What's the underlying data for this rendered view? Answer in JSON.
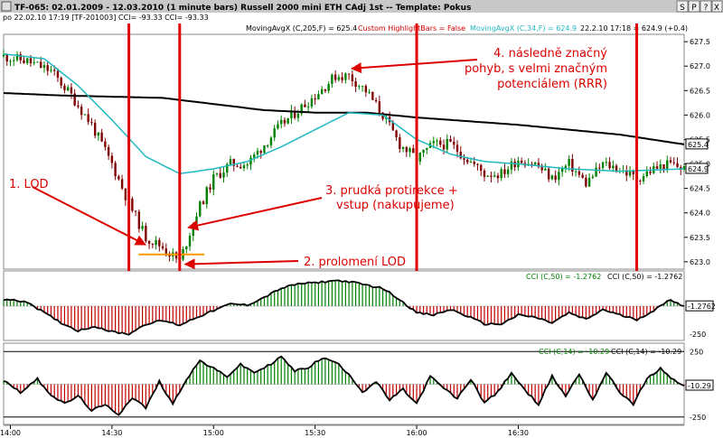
{
  "titlebar": {
    "text": "TF-065:  02.01.2009 - 12.03.2010  (1 minute bars)   Russell 2000 mini ETH CAdj 1st  --  Template: Pokus",
    "buttons": [
      "S",
      "P",
      "?",
      "X"
    ]
  },
  "infobar": {
    "left": "po   22.02.10 17:19 [TF-201003]  CCI= -93.33  CCI= -93.33",
    "ma205": "MovingAvgX (C,205,F) = 625.4",
    "highlight": "Custom HighlightBars = False",
    "ma34": "MovingAvgX (C,34,F) = 624.9",
    "last": "22.2.10 17:18 = 624.9 (+0.4)"
  },
  "annotations": {
    "lod": "1. LOD",
    "prolomeni": "2. prolomení LOD",
    "protirekce_1": "3. prudká protirekce +",
    "protirekce_2": "vstup (nakupujeme)",
    "pohyb_1": "4. následně značný",
    "pohyb_2": "pohyb, s velmi značným",
    "pohyb_3": "potenciálem (RRR)"
  },
  "colors": {
    "up_bar": "#008000",
    "down_bar": "#800000",
    "ma_long": "#000000",
    "ma_short": "#20b8c0",
    "annotation": "#dd0000",
    "vertical_line": "#e00000",
    "lod_line": "#ff9900",
    "cci_pos": "#008000",
    "cci_neg": "#c00000",
    "cci_line": "#000000",
    "cci_label_green": "#008000"
  },
  "price_panel": {
    "price_ticks": [
      "627.5",
      "627.0",
      "626.5",
      "626.0",
      "625.5",
      "625.0",
      "624.5",
      "624.0",
      "623.5",
      "623.0"
    ],
    "last_labels": [
      "625.4",
      "624.9"
    ]
  },
  "cci50_panel": {
    "label_a": "CCI (C,50) = -1.2762",
    "label_b": "CCI (C,50) = -1.2762",
    "ticks": [
      "-250"
    ],
    "value_box": "-1.2762"
  },
  "cci14_panel": {
    "label_a": "CCI (C,14) = -10.29",
    "label_b": "CCI (C,14) = -10.29",
    "ticks": [
      "250",
      "-250"
    ],
    "value_box": "-10.29"
  },
  "time_axis": [
    "14:00",
    "14:30",
    "15:00",
    "15:30",
    "16:00",
    "16:30"
  ],
  "chart_data": {
    "type": "candlestick",
    "title": "Russell 2000 mini ETH CAdj 1st (1 minute bars)",
    "ylim": [
      622.85,
      627.65
    ],
    "x_range": [
      "13:58",
      "17:19"
    ],
    "vertical_markers": [
      "14:35",
      "14:50",
      "16:00",
      "17:05"
    ],
    "lod_level": 623.15,
    "close_path": [
      [
        "13:58",
        627.2
      ],
      [
        "14:05",
        627.1
      ],
      [
        "14:12",
        626.9
      ],
      [
        "14:18",
        626.4
      ],
      [
        "14:24",
        625.8
      ],
      [
        "14:30",
        625.0
      ],
      [
        "14:35",
        624.2
      ],
      [
        "14:40",
        623.5
      ],
      [
        "14:45",
        623.3
      ],
      [
        "14:50",
        623.0
      ],
      [
        "14:55",
        624.0
      ],
      [
        "15:00",
        624.7
      ],
      [
        "15:05",
        625.0
      ],
      [
        "15:10",
        625.0
      ],
      [
        "15:15",
        625.4
      ],
      [
        "15:20",
        625.8
      ],
      [
        "15:25",
        626.1
      ],
      [
        "15:30",
        626.4
      ],
      [
        "15:36",
        626.8
      ],
      [
        "15:40",
        626.8
      ],
      [
        "15:45",
        626.5
      ],
      [
        "15:50",
        626.0
      ],
      [
        "15:55",
        625.4
      ],
      [
        "16:00",
        625.1
      ],
      [
        "16:05",
        625.4
      ],
      [
        "16:10",
        625.4
      ],
      [
        "16:15",
        625.1
      ],
      [
        "16:20",
        624.8
      ],
      [
        "16:25",
        624.8
      ],
      [
        "16:30",
        625.1
      ],
      [
        "16:35",
        625.0
      ],
      [
        "16:40",
        624.7
      ],
      [
        "16:45",
        625.0
      ],
      [
        "16:50",
        624.6
      ],
      [
        "16:55",
        625.0
      ],
      [
        "17:00",
        624.9
      ],
      [
        "17:05",
        624.7
      ],
      [
        "17:10",
        624.9
      ],
      [
        "17:15",
        625.0
      ],
      [
        "17:19",
        624.9
      ]
    ],
    "ma205_path": [
      [
        "13:58",
        626.45
      ],
      [
        "14:15",
        626.4
      ],
      [
        "14:45",
        626.35
      ],
      [
        "15:15",
        626.1
      ],
      [
        "15:30",
        626.05
      ],
      [
        "15:45",
        626.05
      ],
      [
        "16:00",
        625.95
      ],
      [
        "16:30",
        625.8
      ],
      [
        "17:00",
        625.6
      ],
      [
        "17:19",
        625.4
      ]
    ],
    "ma34_path": [
      [
        "13:58",
        627.25
      ],
      [
        "14:10",
        627.15
      ],
      [
        "14:20",
        626.6
      ],
      [
        "14:30",
        625.9
      ],
      [
        "14:40",
        625.15
      ],
      [
        "14:50",
        624.8
      ],
      [
        "15:00",
        624.9
      ],
      [
        "15:10",
        625.05
      ],
      [
        "15:20",
        625.35
      ],
      [
        "15:30",
        625.7
      ],
      [
        "15:40",
        626.05
      ],
      [
        "15:50",
        626.0
      ],
      [
        "16:00",
        625.5
      ],
      [
        "16:10",
        625.2
      ],
      [
        "16:20",
        625.05
      ],
      [
        "16:30",
        625.0
      ],
      [
        "16:45",
        624.9
      ],
      [
        "17:00",
        624.85
      ],
      [
        "17:19",
        624.9
      ]
    ],
    "cci50_range": [
      -300,
      300
    ],
    "cci50_path": [
      [
        "13:58",
        60
      ],
      [
        "14:05",
        40
      ],
      [
        "14:10",
        -60
      ],
      [
        "14:15",
        -150
      ],
      [
        "14:20",
        -220
      ],
      [
        "14:25",
        -180
      ],
      [
        "14:30",
        -230
      ],
      [
        "14:35",
        -250
      ],
      [
        "14:40",
        -160
      ],
      [
        "14:45",
        -130
      ],
      [
        "14:50",
        -170
      ],
      [
        "14:55",
        -100
      ],
      [
        "15:00",
        -40
      ],
      [
        "15:05",
        20
      ],
      [
        "15:10",
        10
      ],
      [
        "15:15",
        80
      ],
      [
        "15:20",
        160
      ],
      [
        "15:25",
        200
      ],
      [
        "15:30",
        210
      ],
      [
        "15:36",
        230
      ],
      [
        "15:40",
        220
      ],
      [
        "15:45",
        190
      ],
      [
        "15:50",
        160
      ],
      [
        "15:55",
        60
      ],
      [
        "16:00",
        -60
      ],
      [
        "16:05",
        -80
      ],
      [
        "16:10",
        -30
      ],
      [
        "16:15",
        -90
      ],
      [
        "16:20",
        -160
      ],
      [
        "16:25",
        -160
      ],
      [
        "16:30",
        -80
      ],
      [
        "16:35",
        -100
      ],
      [
        "16:40",
        -150
      ],
      [
        "16:45",
        -60
      ],
      [
        "16:50",
        -120
      ],
      [
        "16:55",
        -30
      ],
      [
        "17:00",
        -80
      ],
      [
        "17:05",
        -120
      ],
      [
        "17:10",
        -40
      ],
      [
        "17:15",
        60
      ],
      [
        "17:19",
        -1.3
      ]
    ],
    "cci14_range": [
      -300,
      300
    ],
    "cci14_path": [
      [
        "13:58",
        30
      ],
      [
        "14:03",
        -60
      ],
      [
        "14:08",
        40
      ],
      [
        "14:12",
        -80
      ],
      [
        "14:16",
        -150
      ],
      [
        "14:20",
        -90
      ],
      [
        "14:24",
        -200
      ],
      [
        "14:28",
        -160
      ],
      [
        "14:32",
        -230
      ],
      [
        "14:36",
        -100
      ],
      [
        "14:40",
        -180
      ],
      [
        "14:44",
        20
      ],
      [
        "14:48",
        -150
      ],
      [
        "14:52",
        40
      ],
      [
        "14:56",
        180
      ],
      [
        "15:00",
        120
      ],
      [
        "15:04",
        60
      ],
      [
        "15:08",
        150
      ],
      [
        "15:12",
        90
      ],
      [
        "15:16",
        140
      ],
      [
        "15:20",
        210
      ],
      [
        "15:24",
        100
      ],
      [
        "15:28",
        130
      ],
      [
        "15:32",
        200
      ],
      [
        "15:36",
        170
      ],
      [
        "15:40",
        80
      ],
      [
        "15:44",
        -60
      ],
      [
        "15:48",
        20
      ],
      [
        "15:52",
        -120
      ],
      [
        "15:56",
        -40
      ],
      [
        "16:00",
        -150
      ],
      [
        "16:04",
        60
      ],
      [
        "16:08",
        -30
      ],
      [
        "16:12",
        -110
      ],
      [
        "16:16",
        40
      ],
      [
        "16:20",
        -140
      ],
      [
        "16:24",
        -60
      ],
      [
        "16:28",
        90
      ],
      [
        "16:32",
        -50
      ],
      [
        "16:36",
        -150
      ],
      [
        "16:40",
        60
      ],
      [
        "16:44",
        -90
      ],
      [
        "16:48",
        80
      ],
      [
        "16:52",
        -120
      ],
      [
        "16:56",
        90
      ],
      [
        "17:00",
        -60
      ],
      [
        "17:04",
        -150
      ],
      [
        "17:08",
        40
      ],
      [
        "17:12",
        120
      ],
      [
        "17:16",
        30
      ],
      [
        "17:19",
        -10.3
      ]
    ]
  }
}
